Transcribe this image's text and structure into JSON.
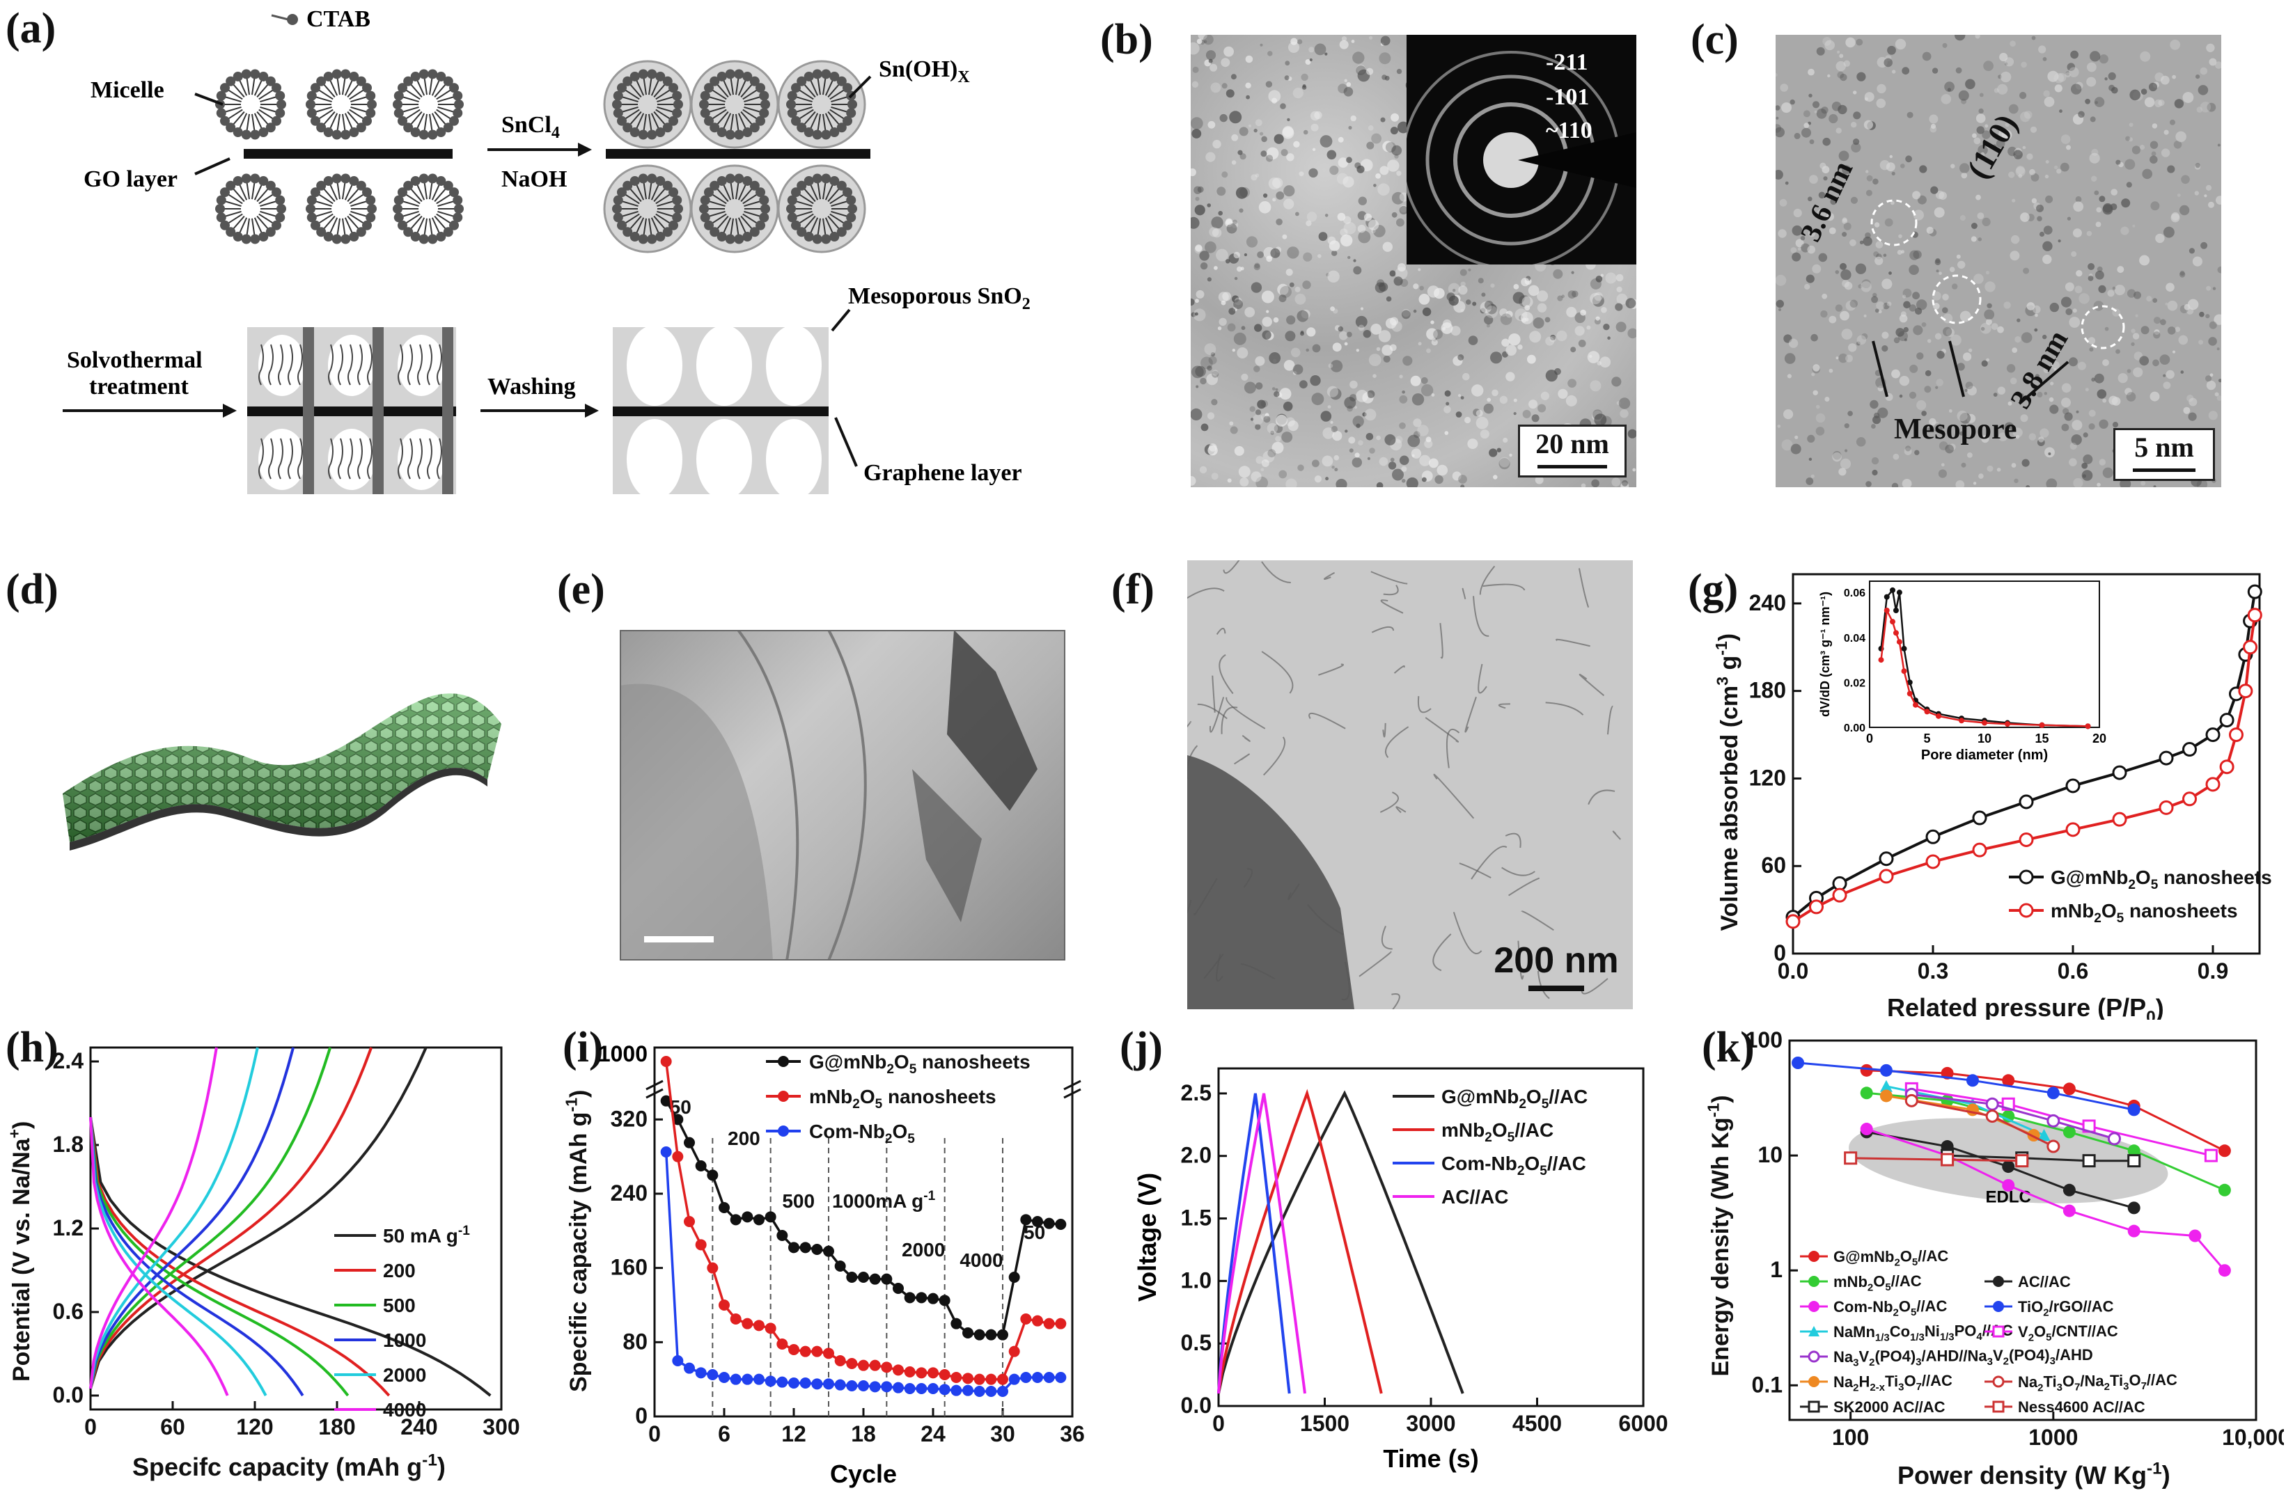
{
  "panels": {
    "a": {
      "label": "(a)",
      "legend": "CTAB",
      "micelle": "Micelle",
      "go_layer": "GO layer",
      "sncl4": "SnCl",
      "sncl4_sub": "4",
      "naoh": "NaOH",
      "snohx": "Sn(OH)",
      "snohx_sub": "X",
      "solvo1": "Solvothermal",
      "solvo2": "treatment",
      "washing": "Washing",
      "meso_sno2": "Mesoporous SnO",
      "meso_sno2_sub": "2",
      "graphene_layer": "Graphene layer"
    },
    "b": {
      "label": "(b)",
      "scale": "20 nm",
      "ring1": "-211",
      "ring2": "-101",
      "ring3": "~110"
    },
    "c": {
      "label": "(c)",
      "scale": "5 nm",
      "d1": "3.6 nm",
      "d2": "3.8 nm",
      "plane": "(110)",
      "mesopore": "Mesopore"
    },
    "d": {
      "label": "(d)"
    },
    "e": {
      "label": "(e)"
    },
    "f": {
      "label": "(f)",
      "scale": "200 nm"
    },
    "g": {
      "label": "(g)"
    },
    "h": {
      "label": "(h)"
    },
    "i": {
      "label": "(i)"
    },
    "j": {
      "label": "(j)"
    },
    "k": {
      "label": "(k)"
    }
  },
  "chart_data": [
    {
      "id": "g",
      "type": "line",
      "xlabel": "Related pressure (P/P",
      "xlabel_sub": "0",
      "xlabel_end": ")",
      "ylabel": "Volume absorbed (cm",
      "ylabel_sup": "3",
      "ylabel_mid": " g",
      "ylabel_sup2": "-1",
      "ylabel_end": ")",
      "xlim": [
        0,
        1.0
      ],
      "ylim": [
        0,
        260
      ],
      "xticks": [
        "0.0",
        "0.3",
        "0.6",
        "0.9"
      ],
      "yticks": [
        "0",
        "60",
        "120",
        "180",
        "240"
      ],
      "legend_position": "bottom-right",
      "series": [
        {
          "name": "G@mNb2O5 nanosheets",
          "label_main": "G@mNb",
          "label_sub": "2",
          "label_mid": "O",
          "label_sub2": "5",
          "label_end": "  nanosheets",
          "color": "#111111",
          "x": [
            0.0,
            0.05,
            0.1,
            0.2,
            0.3,
            0.4,
            0.5,
            0.6,
            0.7,
            0.8,
            0.85,
            0.9,
            0.93,
            0.95,
            0.97,
            0.98,
            0.99
          ],
          "y": [
            25,
            38,
            48,
            65,
            80,
            93,
            104,
            115,
            124,
            134,
            140,
            150,
            160,
            178,
            205,
            228,
            248
          ]
        },
        {
          "name": "mNb2O5 nanosheets",
          "label_main": "mNb",
          "label_sub": "2",
          "label_mid": "O",
          "label_sub2": "5",
          "label_end": "  nanosheets",
          "color": "#e02020",
          "x": [
            0.0,
            0.05,
            0.1,
            0.2,
            0.3,
            0.4,
            0.5,
            0.6,
            0.7,
            0.8,
            0.85,
            0.9,
            0.93,
            0.95,
            0.97,
            0.98,
            0.99
          ],
          "y": [
            22,
            32,
            40,
            53,
            63,
            71,
            78,
            85,
            92,
            100,
            106,
            116,
            128,
            150,
            180,
            210,
            232
          ]
        }
      ],
      "inset": {
        "xlabel": "Pore diameter (nm)",
        "ylabel": "dV/dD (cm³ g⁻¹ nm⁻¹)",
        "xlim": [
          0,
          20
        ],
        "ylim": [
          0,
          0.065
        ],
        "xticks": [
          "0",
          "5",
          "10",
          "15",
          "20"
        ],
        "yticks": [
          "0.00",
          "0.02",
          "0.04",
          "0.06"
        ],
        "series": [
          {
            "name": "G@mNb2O5 nanosheets",
            "color": "#111111",
            "x": [
              1.0,
              1.5,
              2.0,
              2.3,
              2.6,
              3.0,
              3.5,
              4.0,
              5,
              6,
              8,
              10,
              12,
              15,
              19
            ],
            "y": [
              0.035,
              0.058,
              0.061,
              0.052,
              0.06,
              0.035,
              0.02,
              0.012,
              0.008,
              0.006,
              0.004,
              0.003,
              0.002,
              0.001,
              0.0005
            ]
          },
          {
            "name": "mNb2O5 nanosheets",
            "color": "#e02020",
            "x": [
              1.0,
              1.5,
              2.0,
              2.3,
              2.6,
              3.0,
              3.5,
              4.0,
              5,
              6,
              8,
              10,
              12,
              15,
              19
            ],
            "y": [
              0.03,
              0.052,
              0.047,
              0.042,
              0.038,
              0.025,
              0.015,
              0.01,
              0.007,
              0.005,
              0.003,
              0.002,
              0.0015,
              0.001,
              0.0005
            ]
          }
        ]
      }
    },
    {
      "id": "h",
      "type": "line",
      "xlabel": "Specifc capacity (mAh g",
      "xlabel_sup": "-1",
      "xlabel_end": ")",
      "ylabel": "Potential (V vs. Na/Na",
      "ylabel_sup": "+",
      "ylabel_end": ")",
      "xlim": [
        0,
        300
      ],
      "ylim": [
        -0.1,
        2.5
      ],
      "xticks": [
        "0",
        "60",
        "120",
        "180",
        "240",
        "300"
      ],
      "yticks": [
        "0.0",
        "0.6",
        "1.2",
        "1.8",
        "2.4"
      ],
      "legend_position": "right",
      "series": [
        {
          "name": "50 mA g-1",
          "label_main": "50 mA g",
          "label_sup": "-1",
          "color": "#222222",
          "charge_end": 245,
          "discharge_end": 292
        },
        {
          "name": "200",
          "color": "#e02020",
          "charge_end": 205,
          "discharge_end": 218
        },
        {
          "name": "500",
          "color": "#22bb22",
          "charge_end": 175,
          "discharge_end": 188
        },
        {
          "name": "1000",
          "color": "#2233dd",
          "charge_end": 148,
          "discharge_end": 155
        },
        {
          "name": "2000",
          "color": "#22ccdd",
          "charge_end": 122,
          "discharge_end": 128
        },
        {
          "name": "4000",
          "color": "#ee22ee",
          "charge_end": 92,
          "discharge_end": 100
        }
      ]
    },
    {
      "id": "i",
      "type": "scatter",
      "xlabel": "Cycle",
      "ylabel": "Specific capacity (mAh g",
      "ylabel_sup": "-1",
      "ylabel_end": ")",
      "xlim": [
        0,
        36
      ],
      "ylim": [
        0,
        360
      ],
      "ylim_break_top": 1000,
      "xticks": [
        "0",
        "6",
        "12",
        "18",
        "24",
        "30",
        "36"
      ],
      "yticks": [
        "0",
        "80",
        "160",
        "240",
        "320"
      ],
      "ytick_top": "1000",
      "rate_labels": [
        "50",
        "200",
        "500",
        "1000mA g",
        "2000",
        "4000",
        "50"
      ],
      "rate_labels_sup": "-1",
      "legend_position": "top-right",
      "series": [
        {
          "name": "G@mNb2O5 nanosheets",
          "label_main": "G@mNb",
          "label_sub": "2",
          "label_mid": "O",
          "label_sub2": "5",
          "label_end": " nanosheets",
          "color": "#111111",
          "x": [
            1,
            2,
            3,
            4,
            5,
            6,
            7,
            8,
            9,
            10,
            11,
            12,
            13,
            14,
            15,
            16,
            17,
            18,
            19,
            20,
            21,
            22,
            23,
            24,
            25,
            26,
            27,
            28,
            29,
            30,
            31,
            32,
            33,
            34,
            35
          ],
          "y": [
            340,
            320,
            295,
            270,
            260,
            225,
            212,
            215,
            212,
            215,
            195,
            182,
            182,
            180,
            178,
            162,
            150,
            150,
            148,
            148,
            138,
            128,
            128,
            127,
            125,
            100,
            90,
            88,
            88,
            88,
            150,
            212,
            210,
            208,
            207
          ]
        },
        {
          "name": "mNb2O5 nanosheets",
          "label_main": "mNb",
          "label_sub": "2",
          "label_mid": "O",
          "label_sub2": "5",
          "label_end": " nanosheets",
          "color": "#e02020",
          "x": [
            1,
            2,
            3,
            4,
            5,
            6,
            7,
            8,
            9,
            10,
            11,
            12,
            13,
            14,
            15,
            16,
            17,
            18,
            19,
            20,
            21,
            22,
            23,
            24,
            25,
            26,
            27,
            28,
            29,
            30,
            31,
            32,
            33,
            34,
            35
          ],
          "y": [
            350,
            280,
            210,
            185,
            160,
            120,
            105,
            100,
            98,
            95,
            78,
            72,
            70,
            70,
            68,
            60,
            57,
            55,
            55,
            53,
            50,
            48,
            47,
            47,
            45,
            42,
            41,
            40,
            40,
            40,
            70,
            105,
            103,
            100,
            100
          ]
        },
        {
          "name": "Com-Nb2O5",
          "label_main": "Com-Nb",
          "label_sub": "2",
          "label_mid": "O",
          "label_sub2": "5",
          "label_end": "",
          "color": "#2040ee",
          "x": [
            1,
            2,
            3,
            4,
            5,
            6,
            7,
            8,
            9,
            10,
            11,
            12,
            13,
            14,
            15,
            16,
            17,
            18,
            19,
            20,
            21,
            22,
            23,
            24,
            25,
            26,
            27,
            28,
            29,
            30,
            31,
            32,
            33,
            34,
            35
          ],
          "y": [
            285,
            60,
            52,
            47,
            45,
            42,
            40,
            40,
            40,
            38,
            37,
            36,
            36,
            35,
            35,
            34,
            33,
            33,
            32,
            32,
            31,
            30,
            30,
            30,
            29,
            28,
            28,
            27,
            27,
            27,
            40,
            42,
            42,
            42,
            42
          ]
        }
      ]
    },
    {
      "id": "j",
      "type": "line",
      "xlabel": "Time (s)",
      "ylabel": "Voltage (V)",
      "xlim": [
        0,
        6000
      ],
      "ylim": [
        0,
        2.7
      ],
      "xticks": [
        "0",
        "1500",
        "3000",
        "4500",
        "6000"
      ],
      "yticks": [
        "0.0",
        "0.5",
        "1.0",
        "1.5",
        "2.0",
        "2.5"
      ],
      "legend_position": "top-right",
      "series": [
        {
          "name": "G@mNb2O5//AC",
          "label_main": "G@mNb",
          "label_sub": "2",
          "label_mid": "O",
          "label_sub2": "5",
          "label_end": "//AC",
          "color": "#222222",
          "peak": 1780,
          "end": 3450
        },
        {
          "name": "mNb2O5//AC",
          "label_main": "mNb",
          "label_sub": "2",
          "label_mid": "O",
          "label_sub2": "5",
          "label_end": "//AC",
          "color": "#e02020",
          "peak": 1250,
          "end": 2300
        },
        {
          "name": "Com-Nb2O5//AC",
          "label_main": "Com-Nb",
          "label_sub": "2",
          "label_mid": "O",
          "label_sub2": "5",
          "label_end": "//AC",
          "color": "#2244ee",
          "peak": 520,
          "end": 1000
        },
        {
          "name": "AC//AC",
          "label_main": "AC//AC",
          "color": "#ee22ee",
          "peak": 640,
          "end": 1220
        }
      ]
    },
    {
      "id": "k",
      "type": "line",
      "xlabel": "Power density (W Kg",
      "xlabel_sup": "-1",
      "xlabel_end": ")",
      "ylabel": "Energy density (Wh Kg",
      "ylabel_sup": "-1",
      "ylabel_end": ")",
      "xscale": "log",
      "yscale": "log",
      "xlim": [
        50,
        10000
      ],
      "ylim": [
        0.05,
        100
      ],
      "xticks": [
        "100",
        "1000",
        "10,000"
      ],
      "yticks": [
        "0.1",
        "1",
        "10",
        "100"
      ],
      "annotation": "EDLC",
      "legend_position": "bottom-left",
      "series": [
        {
          "name": "G@mNb2O5//AC",
          "color": "#e02020",
          "marker": "circle",
          "x": [
            120,
            300,
            600,
            1200,
            2500,
            7000
          ],
          "y": [
            55,
            52,
            45,
            38,
            27,
            11
          ]
        },
        {
          "name": "mNb2O5//AC",
          "color": "#33cc33",
          "marker": "circle",
          "x": [
            120,
            300,
            600,
            1200,
            2500,
            7000
          ],
          "y": [
            35,
            30,
            22,
            16,
            11,
            5
          ]
        },
        {
          "name": "AC//AC",
          "color": "#222222",
          "marker": "circle",
          "x": [
            120,
            300,
            600,
            1200,
            2500
          ],
          "y": [
            16,
            12,
            8,
            5,
            3.5
          ]
        },
        {
          "name": "Com-Nb2O5//AC",
          "color": "#ee22ee",
          "marker": "circle",
          "x": [
            120,
            300,
            600,
            1200,
            2500,
            5000,
            7000
          ],
          "y": [
            17,
            10,
            5.5,
            3.3,
            2.2,
            2.0,
            1.0
          ]
        },
        {
          "name": "TiO2/rGO//AC",
          "color": "#2244ee",
          "marker": "circle",
          "x": [
            55,
            150,
            400,
            1000,
            2500
          ],
          "y": [
            64,
            55,
            45,
            35,
            25
          ]
        },
        {
          "name": "NaMn1/3Co1/3Ni1/3PO4//AC",
          "color": "#22ccdd",
          "marker": "triangle",
          "x": [
            150,
            400,
            900
          ],
          "y": [
            40,
            28,
            15
          ]
        },
        {
          "name": "V2O5/CNT//AC",
          "color": "#ee22ee",
          "marker": "square-open",
          "x": [
            200,
            600,
            1500,
            6000
          ],
          "y": [
            38,
            28,
            18,
            10
          ]
        },
        {
          "name": "Na3V2(PO4)3/AHD//Na3V2(PO4)3/AHD",
          "color": "#9933cc",
          "marker": "circle-open",
          "x": [
            200,
            500,
            1000,
            2000
          ],
          "y": [
            34,
            28,
            20,
            14
          ]
        },
        {
          "name": "Na2H2-xTi3O7//AC",
          "color": "#ee8822",
          "marker": "circle",
          "x": [
            150,
            400,
            800
          ],
          "y": [
            33,
            25,
            15
          ]
        },
        {
          "name": "Na2Ti3O7/Na2Ti3O7//AC",
          "color": "#cc3333",
          "marker": "circle-open",
          "x": [
            200,
            500,
            1000
          ],
          "y": [
            30,
            22,
            12
          ]
        },
        {
          "name": "SK2000 AC//AC",
          "color": "#222222",
          "marker": "square-open",
          "x": [
            300,
            700,
            1500,
            2500
          ],
          "y": [
            10,
            9.5,
            9,
            9
          ]
        },
        {
          "name": "Ness4600 AC//AC",
          "color": "#cc3333",
          "marker": "square-open",
          "x": [
            100,
            300,
            700
          ],
          "y": [
            9.5,
            9.2,
            9
          ]
        }
      ]
    }
  ]
}
